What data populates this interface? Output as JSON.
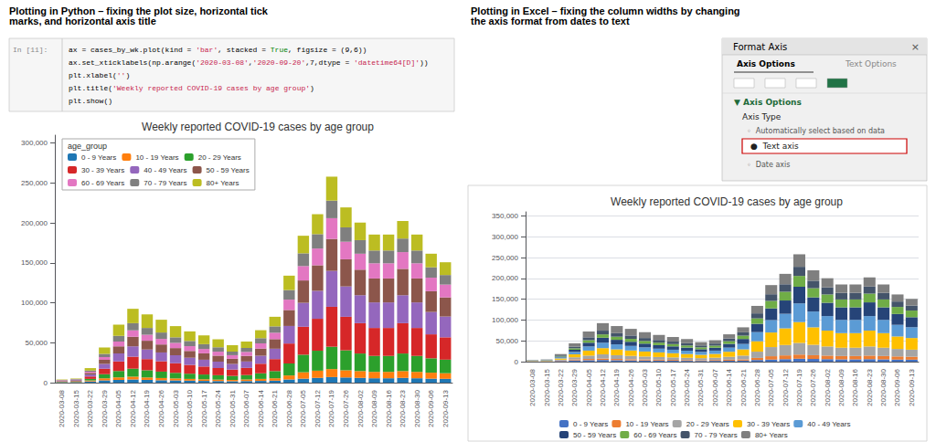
{
  "chart_data": [
    {
      "type": "bar",
      "stacked": true,
      "title": "Weekly reported COVID-19 cases by age group",
      "subtitle": "Plotting in Python – fixing the plot size, horizontal tick\nmarks, and horizontal axis title",
      "annotations": [
        "In [11]:",
        "ax = cases_by_wk.plot(kind = 'bar', stacked = True, figsize = (9,6))",
        "ax.set_xticklabels(np.arange('2020-03-08','2020-09-20',7,dtype = 'datetime64[D]'))",
        "plt.xlabel('')",
        "plt.title('Weekly reported COVID-19 cases by age group')",
        "plt.show()"
      ],
      "categories": [
        "2020-03-08",
        "2020-03-15",
        "2020-03-22",
        "2020-03-29",
        "2020-04-05",
        "2020-04-12",
        "2020-04-19",
        "2020-04-26",
        "2020-05-03",
        "2020-05-10",
        "2020-05-17",
        "2020-05-24",
        "2020-05-31",
        "2020-06-07",
        "2020-06-14",
        "2020-06-21",
        "2020-06-28",
        "2020-07-05",
        "2020-07-12",
        "2020-07-19",
        "2020-07-26",
        "2020-08-02",
        "2020-08-09",
        "2020-08-16",
        "2020-08-23",
        "2020-08-30",
        "2020-09-06",
        "2020-09-13"
      ],
      "series": [
        {
          "name": "0 - 9 Years",
          "color": "#1f77b4",
          "values": [
            500,
            600,
            1500,
            3000,
            3500,
            4000,
            3500,
            3000,
            2800,
            2500,
            2200,
            2000,
            1800,
            2000,
            2200,
            2500,
            4000,
            5000,
            6000,
            7000,
            6500,
            6000,
            5500,
            5500,
            6000,
            5500,
            5000,
            4800
          ]
        },
        {
          "name": "10 - 19 Years",
          "color": "#ff7f0e",
          "values": [
            300,
            400,
            1200,
            2500,
            3000,
            3500,
            3000,
            2800,
            2500,
            2200,
            2000,
            1800,
            1600,
            2000,
            2500,
            3000,
            5000,
            8000,
            9000,
            10000,
            9000,
            8500,
            8000,
            8000,
            8500,
            8000,
            7500,
            7000
          ]
        },
        {
          "name": "20 - 29 Years",
          "color": "#2ca02c",
          "values": [
            500,
            600,
            2000,
            5000,
            8000,
            10000,
            9000,
            8000,
            7000,
            6500,
            6000,
            5500,
            5000,
            5500,
            7000,
            9000,
            15000,
            22000,
            25000,
            28000,
            25000,
            22000,
            20000,
            20000,
            22000,
            20000,
            18000,
            17000
          ]
        },
        {
          "name": "30 - 39 Years",
          "color": "#d62728",
          "values": [
            600,
            800,
            3000,
            7000,
            12000,
            15000,
            14000,
            13000,
            12000,
            11000,
            10000,
            9000,
            8000,
            9000,
            12000,
            15000,
            25000,
            35000,
            40000,
            50000,
            42000,
            38000,
            35000,
            35000,
            38000,
            35000,
            30000,
            28000
          ]
        },
        {
          "name": "40 - 49 Years",
          "color": "#9467bd",
          "values": [
            500,
            700,
            2500,
            6000,
            10000,
            13000,
            12000,
            11000,
            10000,
            9000,
            8500,
            8000,
            7000,
            8000,
            10000,
            13000,
            22000,
            30000,
            35000,
            45000,
            38000,
            35000,
            32000,
            32000,
            35000,
            32000,
            28000,
            26000
          ]
        },
        {
          "name": "50 - 59 Years",
          "color": "#8c564b",
          "values": [
            400,
            600,
            2000,
            5000,
            9000,
            12000,
            11000,
            10000,
            9000,
            8500,
            8000,
            7500,
            6500,
            7000,
            9000,
            12000,
            20000,
            28000,
            32000,
            40000,
            34000,
            32000,
            30000,
            30000,
            33000,
            30000,
            26000,
            24000
          ]
        },
        {
          "name": "60 - 69 Years",
          "color": "#e377c2",
          "values": [
            300,
            400,
            1500,
            3500,
            6000,
            8000,
            7500,
            7000,
            6500,
            6000,
            5500,
            5000,
            4500,
            5000,
            6500,
            8000,
            13000,
            18000,
            21000,
            26000,
            22000,
            20000,
            19000,
            19000,
            21000,
            19000,
            17000,
            16000
          ]
        },
        {
          "name": "70 - 79 Years",
          "color": "#7f7f7f",
          "values": [
            300,
            400,
            1500,
            4000,
            7000,
            9000,
            8500,
            8000,
            7000,
            6500,
            6000,
            5500,
            4500,
            5000,
            6500,
            8000,
            12000,
            16000,
            18000,
            22000,
            18000,
            17000,
            16000,
            16000,
            17000,
            16000,
            13000,
            12000
          ]
        },
        {
          "name": "80+ Years",
          "color": "#bcbd22",
          "values": [
            500,
            700,
            3000,
            8000,
            14000,
            18000,
            17000,
            16000,
            14000,
            12000,
            11000,
            10000,
            8000,
            8000,
            10000,
            12000,
            18000,
            22000,
            25000,
            30000,
            25000,
            22000,
            20000,
            20000,
            22000,
            20000,
            17000,
            16000
          ]
        }
      ],
      "ylim": [
        0,
        310000
      ],
      "yticks": [
        0,
        {
          "value": 50000,
          "label": "50,000"
        },
        {
          "value": 100000,
          "label": "100,000"
        },
        {
          "value": 150000,
          "label": "150,000"
        },
        {
          "value": 200000,
          "label": "200,000"
        },
        {
          "value": 250000,
          "label": "250,000"
        },
        {
          "value": 300000,
          "label": "300,000"
        }
      ],
      "grid": false,
      "legend": "upper left",
      "legend_title": "age_group"
    },
    {
      "type": "bar",
      "stacked": true,
      "title": "Weekly reported COVID-19 cases by age group",
      "subtitle": "Plotting in Excel – fixing the column widths by changing\nthe axis format from dates to text",
      "annotations": [
        "Format Axis",
        "×",
        "Axis Options",
        "Text Options",
        "▼ Axis Options",
        "Axis Type",
        "◦  Automatically select based on data",
        "●  Text axis",
        "◦  Date axis"
      ],
      "categories": [
        "2020-03-08",
        "2020-03-15",
        "2020-03-22",
        "2020-03-29",
        "2020-04-05",
        "2020-04-12",
        "2020-04-19",
        "2020-04-26",
        "2020-05-03",
        "2020-05-10",
        "2020-05-17",
        "2020-05-24",
        "2020-05-31",
        "2020-06-07",
        "2020-06-14",
        "2020-06-21",
        "2020-06-28",
        "2020-07-05",
        "2020-07-12",
        "2020-07-19",
        "2020-07-26",
        "2020-08-02",
        "2020-08-09",
        "2020-08-16",
        "2020-08-23",
        "2020-08-30",
        "2020-09-06",
        "2020-09-13"
      ],
      "series": [
        {
          "name": "0 - 9 Years",
          "color": "#4472c4",
          "values": [
            500,
            600,
            1500,
            3000,
            3500,
            4000,
            3500,
            3000,
            2800,
            2500,
            2200,
            2000,
            1800,
            2000,
            2200,
            2500,
            4000,
            5000,
            6000,
            7000,
            6500,
            6000,
            5500,
            5500,
            6000,
            5500,
            5000,
            4800
          ]
        },
        {
          "name": "10 - 19 Years",
          "color": "#ed7d31",
          "values": [
            300,
            400,
            1200,
            2500,
            3000,
            3500,
            3000,
            2800,
            2500,
            2200,
            2000,
            1800,
            1600,
            2000,
            2500,
            3000,
            5000,
            8000,
            9000,
            10000,
            9000,
            8500,
            8000,
            8000,
            8500,
            8000,
            7500,
            7000
          ]
        },
        {
          "name": "20 - 29 Years",
          "color": "#a5a5a5",
          "values": [
            500,
            600,
            2000,
            5000,
            8000,
            10000,
            9000,
            8000,
            7000,
            6500,
            6000,
            5500,
            5000,
            5500,
            7000,
            9000,
            15000,
            22000,
            25000,
            28000,
            25000,
            22000,
            20000,
            20000,
            22000,
            20000,
            18000,
            17000
          ]
        },
        {
          "name": "30 - 39 Years",
          "color": "#ffc000",
          "values": [
            600,
            800,
            3000,
            7000,
            12000,
            15000,
            14000,
            13000,
            12000,
            11000,
            10000,
            9000,
            8000,
            9000,
            12000,
            15000,
            25000,
            35000,
            40000,
            50000,
            42000,
            38000,
            35000,
            35000,
            38000,
            35000,
            30000,
            28000
          ]
        },
        {
          "name": "40 - 49 Years",
          "color": "#5b9bd5",
          "values": [
            500,
            700,
            2500,
            6000,
            10000,
            13000,
            12000,
            11000,
            10000,
            9000,
            8500,
            8000,
            7000,
            8000,
            10000,
            13000,
            22000,
            30000,
            35000,
            45000,
            38000,
            35000,
            32000,
            32000,
            35000,
            32000,
            28000,
            26000
          ]
        },
        {
          "name": "50 - 59 Years",
          "color": "#264478",
          "values": [
            400,
            600,
            2000,
            5000,
            9000,
            12000,
            11000,
            10000,
            9000,
            8500,
            8000,
            7500,
            6500,
            7000,
            9000,
            12000,
            20000,
            28000,
            32000,
            40000,
            34000,
            32000,
            30000,
            30000,
            33000,
            30000,
            26000,
            24000
          ]
        },
        {
          "name": "60 - 69 Years",
          "color": "#70ad47",
          "values": [
            300,
            400,
            1500,
            3500,
            6000,
            8000,
            7500,
            7000,
            6500,
            6000,
            5500,
            5000,
            4500,
            5000,
            6500,
            8000,
            13000,
            18000,
            21000,
            26000,
            22000,
            20000,
            19000,
            19000,
            21000,
            19000,
            17000,
            16000
          ]
        },
        {
          "name": "70 - 79 Years",
          "color": "#44546a",
          "values": [
            300,
            400,
            1500,
            4000,
            7000,
            9000,
            8500,
            8000,
            7000,
            6500,
            6000,
            5500,
            4500,
            5000,
            6500,
            8000,
            12000,
            16000,
            18000,
            22000,
            18000,
            17000,
            16000,
            16000,
            17000,
            16000,
            13000,
            12000
          ]
        },
        {
          "name": "80+ Years",
          "color": "#7f7f7f",
          "values": [
            500,
            700,
            3000,
            8000,
            14000,
            18000,
            17000,
            16000,
            14000,
            12000,
            11000,
            10000,
            8000,
            8000,
            10000,
            12000,
            18000,
            22000,
            25000,
            30000,
            25000,
            22000,
            20000,
            20000,
            22000,
            20000,
            17000,
            16000
          ]
        }
      ],
      "ylim": [
        0,
        360000
      ],
      "yticks": [
        0,
        {
          "value": 50000,
          "label": "50,000"
        },
        {
          "value": 100000,
          "label": "100,000"
        },
        {
          "value": 150000,
          "label": "150,000"
        },
        {
          "value": 200000,
          "label": "200,000"
        },
        {
          "value": 250000,
          "label": "250,000"
        },
        {
          "value": 300000,
          "label": "300,000"
        },
        {
          "value": 350000,
          "label": "350,000"
        }
      ],
      "grid": true,
      "legend": "bottom"
    }
  ]
}
